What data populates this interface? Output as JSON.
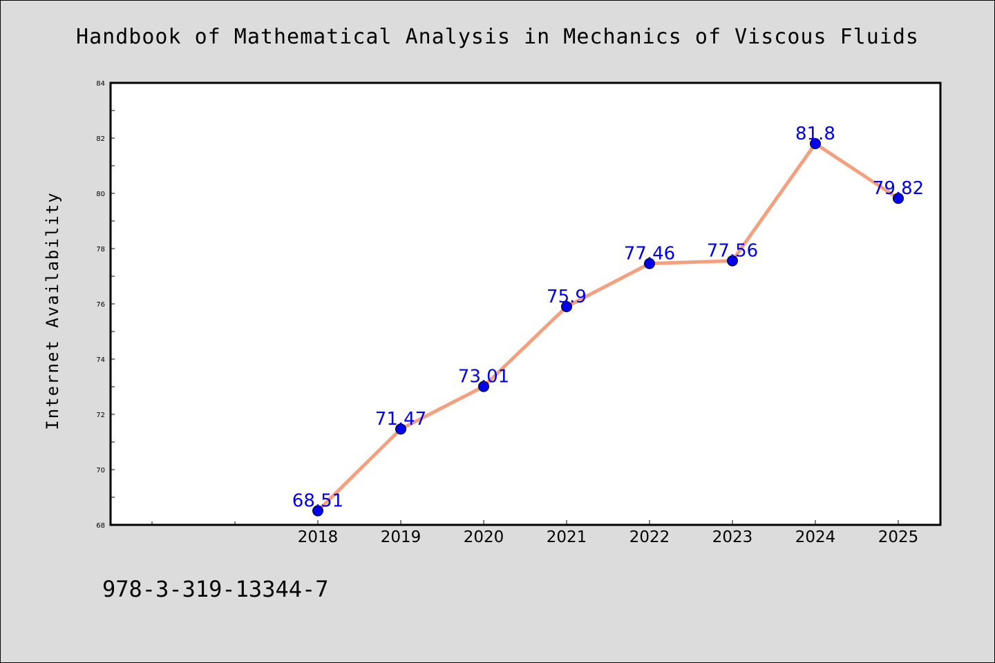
{
  "chart_data": {
    "type": "line",
    "title": "Handbook of Mathematical Analysis in Mechanics of Viscous Fluids",
    "xlabel": "",
    "ylabel": "Internet Availability",
    "categories": [
      "2018",
      "2019",
      "2020",
      "2021",
      "2022",
      "2023",
      "2024",
      "2025"
    ],
    "series": [
      {
        "values": [
          68.51,
          71.47,
          73.01,
          75.9,
          77.46,
          77.56,
          81.8,
          79.82
        ],
        "data_labels": [
          "68.51",
          "71.47",
          "73.01",
          "75.9",
          "77.46",
          "77.56",
          "81.8",
          "79.82"
        ]
      }
    ],
    "ylim": [
      68,
      84
    ],
    "yticks": [
      "68",
      "70",
      "72",
      "74",
      "76",
      "78",
      "80",
      "82",
      "84"
    ],
    "grid": false,
    "colors": {
      "line": "#f4a07f",
      "marker": "#0000ee",
      "data_label": "#0000ee",
      "background": "#dcdcdc",
      "plot_background": "#ffffff"
    }
  },
  "footer": {
    "isbn": "978-3-319-13344-7"
  }
}
